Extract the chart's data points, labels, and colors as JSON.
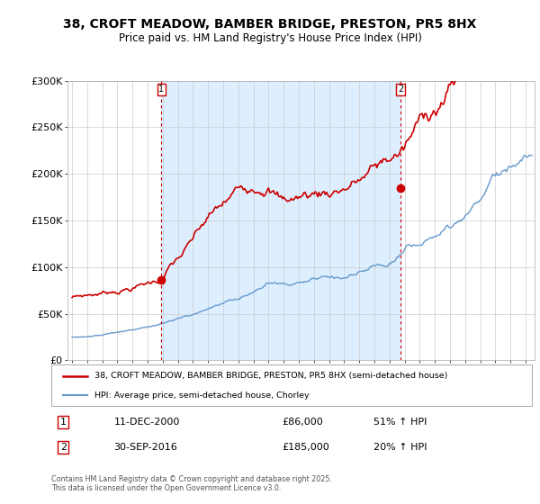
{
  "title_line1": "38, CROFT MEADOW, BAMBER BRIDGE, PRESTON, PR5 8HX",
  "title_line2": "Price paid vs. HM Land Registry's House Price Index (HPI)",
  "ylim": [
    0,
    300000
  ],
  "yticks": [
    0,
    50000,
    100000,
    150000,
    200000,
    250000,
    300000
  ],
  "ytick_labels": [
    "£0",
    "£50K",
    "£100K",
    "£150K",
    "£200K",
    "£250K",
    "£300K"
  ],
  "red_color": "#cc0000",
  "blue_color": "#6699cc",
  "blue_fill_color": "#ddeeff",
  "marker1_year": 2000.92,
  "marker1_price": 86000,
  "marker2_year": 2016.75,
  "marker2_price": 185000,
  "legend_label_red": "38, CROFT MEADOW, BAMBER BRIDGE, PRESTON, PR5 8HX (semi-detached house)",
  "legend_label_blue": "HPI: Average price, semi-detached house, Chorley",
  "annotation1_box": "1",
  "annotation1_date": "11-DEC-2000",
  "annotation1_price": "£86,000",
  "annotation1_hpi": "51% ↑ HPI",
  "annotation2_box": "2",
  "annotation2_date": "30-SEP-2016",
  "annotation2_price": "£185,000",
  "annotation2_hpi": "20% ↑ HPI",
  "footer": "Contains HM Land Registry data © Crown copyright and database right 2025.\nThis data is licensed under the Open Government Licence v3.0.",
  "background_color": "#ffffff",
  "grid_color": "#cccccc"
}
